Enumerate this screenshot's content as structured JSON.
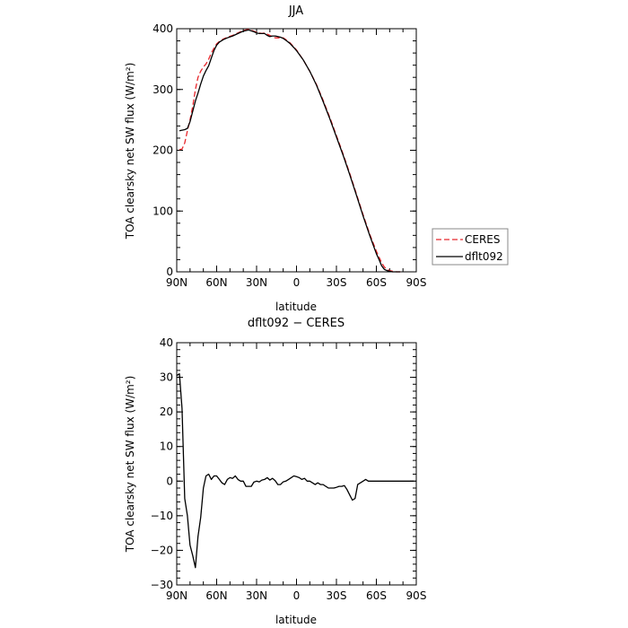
{
  "chart_data": [
    {
      "type": "line",
      "title": "JJA",
      "xlabel": "latitude",
      "ylabel": "TOA clearsky net SW flux (W/m²)",
      "xlim": [
        90,
        -90
      ],
      "ylim": [
        0,
        400
      ],
      "x_ticks": [
        "90N",
        "60N",
        "30N",
        "0",
        "30S",
        "60S",
        "90S"
      ],
      "y_ticks": [
        "0",
        "100",
        "200",
        "300",
        "400"
      ],
      "legend_position": "right",
      "series": [
        {
          "name": "CERES",
          "color": "#e8272c",
          "dash": "dashed",
          "x": [
            88,
            86,
            84,
            82,
            80,
            78,
            76,
            74,
            72,
            70,
            68,
            66,
            64,
            62,
            60,
            58,
            55,
            52,
            48,
            44,
            40,
            36,
            32,
            30,
            28,
            26,
            24,
            22,
            20,
            18,
            16,
            14,
            12,
            10,
            8,
            5,
            2,
            0,
            -5,
            -10,
            -15,
            -20,
            -25,
            -30,
            -35,
            -40,
            -45,
            -50,
            -55,
            -60,
            -62,
            -64,
            -66,
            -68,
            -70,
            -72,
            -75,
            -78
          ],
          "y": [
            201,
            202,
            212,
            232,
            250,
            272,
            300,
            320,
            330,
            337,
            342,
            350,
            360,
            368,
            375,
            379,
            383,
            386,
            389,
            393,
            397,
            399,
            396,
            394,
            393,
            392,
            393,
            391,
            389,
            387,
            385,
            385,
            385,
            385,
            382,
            377,
            370,
            365,
            349,
            330,
            308,
            282,
            254,
            224,
            194,
            162,
            128,
            94,
            62,
            34,
            24,
            15,
            8,
            4,
            2,
            1,
            0,
            0
          ]
        },
        {
          "name": "dflt092",
          "color": "#000000",
          "dash": "solid",
          "x": [
            88,
            86,
            84,
            82,
            80,
            78,
            76,
            74,
            72,
            70,
            68,
            66,
            64,
            62,
            60,
            58,
            55,
            52,
            48,
            44,
            40,
            36,
            32,
            30,
            28,
            26,
            24,
            22,
            20,
            18,
            16,
            14,
            12,
            10,
            8,
            5,
            2,
            0,
            -5,
            -10,
            -15,
            -20,
            -25,
            -30,
            -35,
            -40,
            -45,
            -50,
            -55,
            -60,
            -62,
            -64,
            -66,
            -68,
            -70,
            -72,
            -75,
            -78
          ],
          "y": [
            232,
            233,
            234,
            236,
            247,
            264,
            281,
            294,
            309,
            322,
            331,
            339,
            352,
            364,
            373,
            378,
            382,
            385,
            388,
            392,
            396,
            398,
            395,
            393,
            392,
            392,
            392,
            389,
            387,
            388,
            388,
            387,
            386,
            384,
            381,
            376,
            369,
            364,
            349,
            330,
            307,
            280,
            252,
            222,
            192,
            160,
            126,
            92,
            60,
            30,
            20,
            10,
            4,
            2,
            1,
            0,
            0,
            0
          ]
        }
      ]
    },
    {
      "type": "line",
      "title": "dflt092 − CERES",
      "xlabel": "latitude",
      "ylabel": "TOA clearsky net SW flux (W/m²)",
      "xlim": [
        90,
        -90
      ],
      "ylim": [
        -30,
        40
      ],
      "x_ticks": [
        "90N",
        "60N",
        "30N",
        "0",
        "30S",
        "60S",
        "90S"
      ],
      "y_ticks": [
        "−30",
        "−20",
        "−10",
        "0",
        "10",
        "20",
        "30",
        "40"
      ],
      "series": [
        {
          "color": "#000000",
          "dash": "solid",
          "x": [
            90,
            88,
            86,
            84,
            82,
            80,
            78,
            76,
            74,
            72,
            70,
            68,
            66,
            64,
            62,
            60,
            58,
            56,
            54,
            52,
            50,
            48,
            46,
            44,
            42,
            40,
            38,
            36,
            34,
            32,
            30,
            28,
            26,
            24,
            22,
            20,
            18,
            16,
            14,
            12,
            10,
            8,
            6,
            4,
            2,
            0,
            -2,
            -4,
            -6,
            -8,
            -10,
            -12,
            -14,
            -16,
            -18,
            -20,
            -22,
            -24,
            -26,
            -28,
            -30,
            -32,
            -34,
            -36,
            -38,
            -40,
            -42,
            -44,
            -46,
            -48,
            -50,
            -52,
            -54,
            -56,
            -58,
            -60,
            -62,
            -64,
            -66,
            -68,
            -70,
            -72,
            -74,
            -76,
            -78,
            -80,
            -85,
            -88
          ],
          "y": [
            30.5,
            31,
            21,
            -5,
            -10,
            -18.5,
            -21.5,
            -25,
            -16,
            -10.5,
            -2,
            1.5,
            2,
            0.5,
            1.5,
            1.5,
            0.5,
            -0.5,
            -1,
            0.5,
            1,
            0.8,
            1.5,
            0.5,
            0,
            0,
            -1.5,
            -1.5,
            -1.5,
            -0.3,
            0,
            -0.2,
            0.3,
            0.5,
            1,
            0.3,
            0.8,
            0.1,
            -1,
            -1,
            -0.2,
            0,
            0.5,
            1,
            1.5,
            1.3,
            1,
            0.5,
            0.8,
            0,
            0,
            -0.5,
            -1,
            -0.5,
            -1,
            -1,
            -1.5,
            -2,
            -2,
            -2,
            -1.8,
            -1.5,
            -1.5,
            -1.3,
            -2.5,
            -4,
            -5.5,
            -5,
            -1,
            -0.5,
            0,
            0.5,
            0,
            0,
            0,
            0,
            0,
            0,
            0,
            0,
            0,
            0,
            0,
            0,
            0,
            0,
            0,
            0
          ]
        }
      ]
    }
  ]
}
